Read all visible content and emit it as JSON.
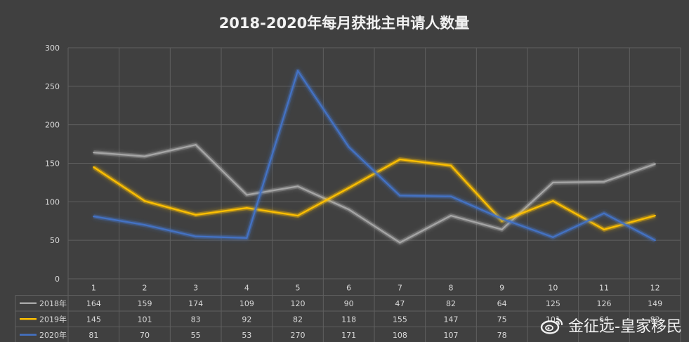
{
  "chart_data": {
    "type": "line",
    "title": "2018-2020年每月获批主申请人数量",
    "categories": [
      "1",
      "2",
      "3",
      "4",
      "5",
      "6",
      "7",
      "8",
      "9",
      "10",
      "11",
      "12"
    ],
    "y_ticks": [
      "0",
      "50",
      "100",
      "150",
      "200",
      "250",
      "300"
    ],
    "ylim": [
      0,
      300
    ],
    "grid": true,
    "legend": "data-table",
    "series": [
      {
        "name": "2018年",
        "color": "#a6a6a6",
        "values": [
          164,
          159,
          174,
          109,
          120,
          90,
          47,
          82,
          64,
          125,
          126,
          149
        ]
      },
      {
        "name": "2019年",
        "color": "#ffc000",
        "values": [
          145,
          101,
          83,
          92,
          82,
          118,
          155,
          147,
          75,
          101,
          64,
          82
        ]
      },
      {
        "name": "2020年",
        "color": "#4472c4",
        "values": [
          81,
          70,
          55,
          53,
          270,
          171,
          108,
          107,
          78,
          54,
          85,
          50
        ]
      }
    ],
    "table_values": [
      [
        "164",
        "159",
        "174",
        "109",
        "120",
        "90",
        "47",
        "82",
        "64",
        "125",
        "126",
        "149"
      ],
      [
        "145",
        "101",
        "83",
        "92",
        "82",
        "118",
        "155",
        "147",
        "75",
        "101",
        "64",
        "82"
      ],
      [
        "81",
        "70",
        "55",
        "53",
        "270",
        "171",
        "108",
        "107",
        "78",
        "",
        "",
        ""
      ]
    ]
  },
  "watermark": {
    "logo": "weibo-logo-icon",
    "text": "金征远-皇家移民"
  }
}
